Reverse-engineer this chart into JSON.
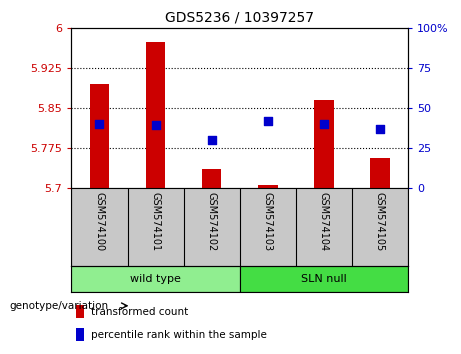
{
  "title": "GDS5236 / 10397257",
  "samples": [
    "GSM574100",
    "GSM574101",
    "GSM574102",
    "GSM574103",
    "GSM574104",
    "GSM574105"
  ],
  "transformed_counts": [
    5.895,
    5.975,
    5.735,
    5.705,
    5.865,
    5.755
  ],
  "percentile_ranks": [
    40,
    39,
    30,
    42,
    40,
    37
  ],
  "ylim_left": [
    5.7,
    6.0
  ],
  "ylim_right": [
    0,
    100
  ],
  "yticks_left": [
    5.7,
    5.775,
    5.85,
    5.925,
    6.0
  ],
  "yticks_right": [
    0,
    25,
    50,
    75,
    100
  ],
  "ytick_labels_left": [
    "5.7",
    "5.775",
    "5.85",
    "5.925",
    "6"
  ],
  "ytick_labels_right": [
    "0",
    "25",
    "50",
    "75",
    "100%"
  ],
  "bar_color": "#cc0000",
  "dot_color": "#0000cc",
  "groups": [
    {
      "label": "wild type",
      "indices": [
        0,
        1,
        2
      ],
      "color": "#90ee90"
    },
    {
      "label": "SLN null",
      "indices": [
        3,
        4,
        5
      ],
      "color": "#44dd44"
    }
  ],
  "group_label": "genotype/variation",
  "legend_items": [
    {
      "label": "transformed count",
      "color": "#cc0000"
    },
    {
      "label": "percentile rank within the sample",
      "color": "#0000cc"
    }
  ],
  "bar_base": 5.7,
  "dot_size": 30,
  "background_color": "#ffffff",
  "tick_area_color": "#c8c8c8",
  "bar_width": 0.35
}
